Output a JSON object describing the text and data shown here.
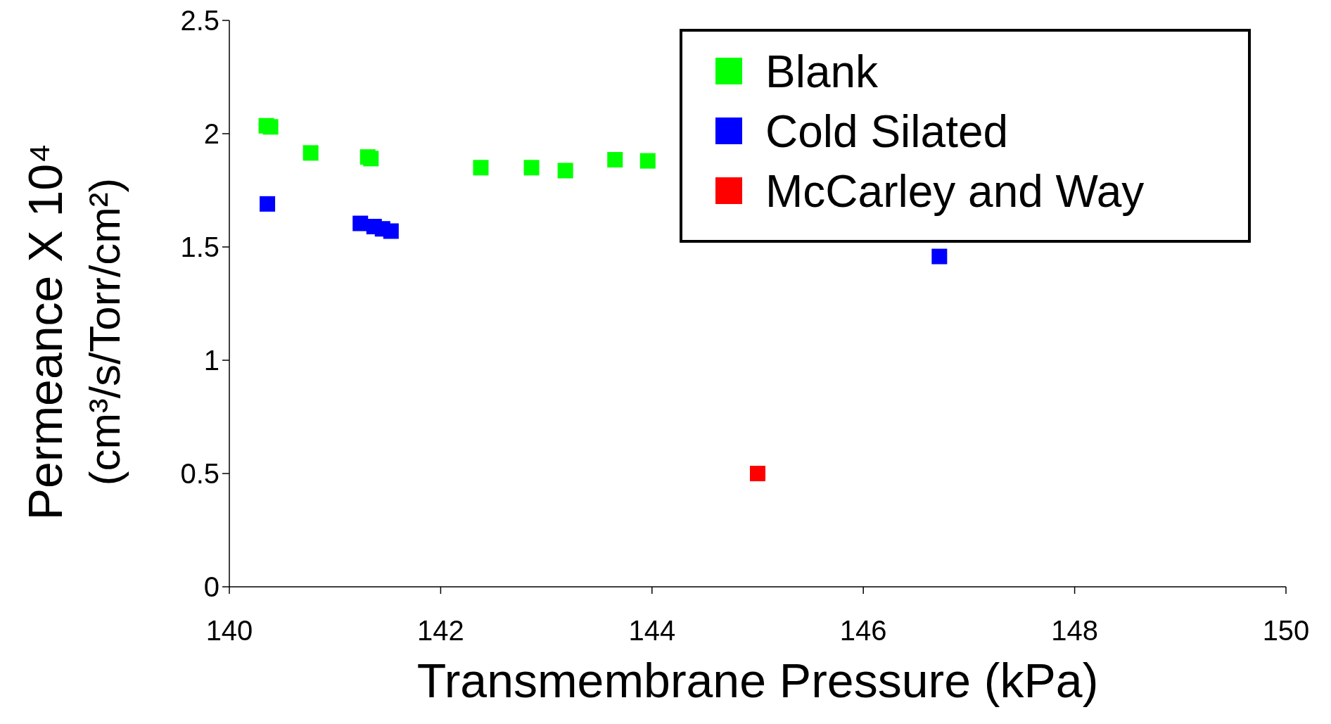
{
  "chart_data": {
    "type": "scatter",
    "xlabel": "Transmembrane Pressure (kPa)",
    "ylabel": "Permeance X 10⁴\n(cm³/s/Torr/cm²)",
    "xlim": [
      140,
      150
    ],
    "xticks": [
      140,
      142,
      144,
      146,
      148,
      150
    ],
    "ylim": [
      0,
      2.5
    ],
    "yticks": [
      0,
      0.5,
      1,
      1.5,
      2,
      2.5
    ],
    "grid": false,
    "legend": "top right",
    "marker": "square",
    "series": [
      {
        "name": "Blank",
        "color": "#00ff00",
        "x": [
          140.35,
          140.39,
          140.77,
          141.31,
          141.34,
          142.38,
          142.86,
          143.18,
          143.65,
          143.96
        ],
        "values": [
          2.035,
          2.03,
          1.915,
          1.897,
          1.89,
          1.85,
          1.85,
          1.837,
          1.885,
          1.88
        ]
      },
      {
        "name": "Cold Silated",
        "color": "#0000ff",
        "x": [
          140.36,
          141.24,
          141.37,
          141.45,
          141.53,
          146.72
        ],
        "values": [
          1.69,
          1.604,
          1.59,
          1.58,
          1.57,
          1.458
        ]
      },
      {
        "name": "McCarley and Way",
        "color": "#ff0000",
        "x": [
          145.0
        ],
        "values": [
          0.5
        ]
      }
    ]
  }
}
